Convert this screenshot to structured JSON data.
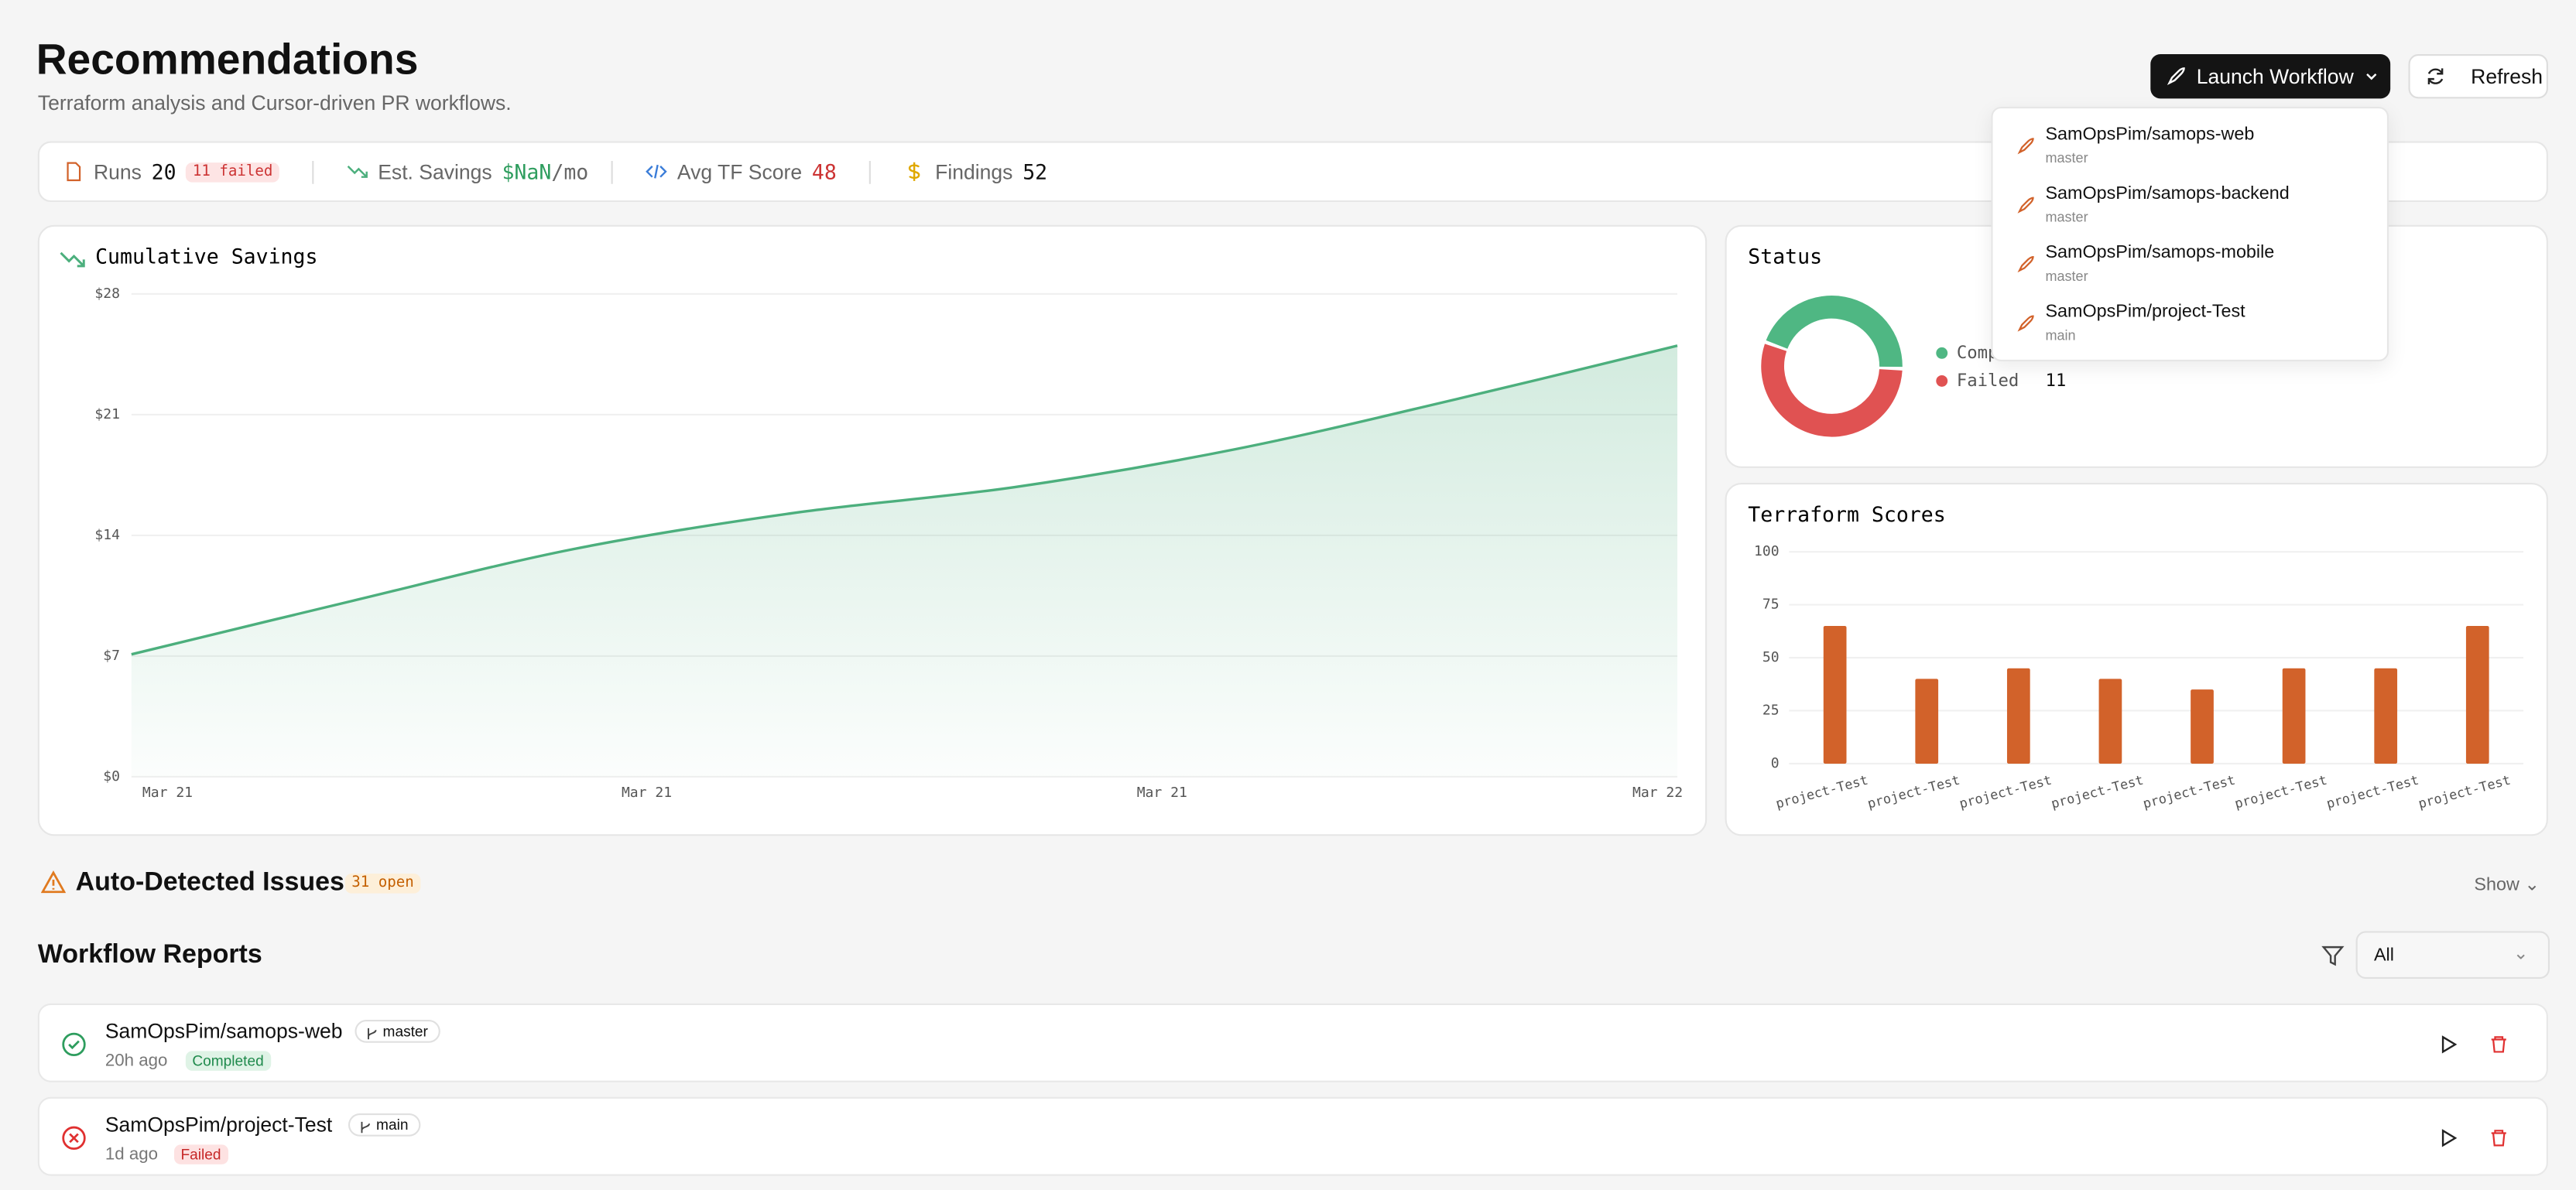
{
  "header": {
    "title": "Recommendations",
    "subtitle": "Terraform analysis and Cursor-driven PR workflows.",
    "launch": "Launch Workflow",
    "refresh": "Refresh"
  },
  "launch_menu": [
    {
      "repo": "SamOpsPim/samops-web",
      "branch": "master"
    },
    {
      "repo": "SamOpsPim/samops-backend",
      "branch": "master"
    },
    {
      "repo": "SamOpsPim/samops-mobile",
      "branch": "master"
    },
    {
      "repo": "SamOpsPim/project-Test",
      "branch": "main"
    }
  ],
  "stats": {
    "runs": {
      "label": "Runs",
      "value": "20",
      "badge": "11 failed"
    },
    "savings": {
      "label": "Est. Savings",
      "value": "$NaN",
      "unit": "/mo"
    },
    "score": {
      "label": "Avg TF Score",
      "value": "48"
    },
    "findings": {
      "label": "Findings",
      "value": "52"
    }
  },
  "chart_data": [
    {
      "type": "line",
      "title": "Cumulative Savings",
      "color": "#4caf7d",
      "values": [
        7.1,
        10.2,
        13.2,
        15.3,
        16.8,
        19.0,
        21.9,
        25.0
      ],
      "xtick_labels": [
        "Mar 21",
        "Mar 21",
        "Mar 21",
        "Mar 22"
      ],
      "ylim": [
        0,
        28
      ],
      "yticks": [
        {
          "value": 0,
          "label": "$0"
        },
        {
          "value": 7,
          "label": "$7"
        },
        {
          "value": 14,
          "label": "$14"
        },
        {
          "value": 21,
          "label": "$21"
        },
        {
          "value": 28,
          "label": "$28"
        }
      ],
      "grid": true
    },
    {
      "type": "pie",
      "title": "Status",
      "categories": [
        "Completed",
        "Failed"
      ],
      "values": [
        9,
        11
      ],
      "colors": [
        "#4fb783",
        "#e05252"
      ]
    },
    {
      "type": "bar",
      "title": "Terraform Scores",
      "color": "#d2622a",
      "categories": [
        "project-Test",
        "project-Test",
        "project-Test",
        "project-Test",
        "project-Test",
        "project-Test",
        "project-Test",
        "project-Test"
      ],
      "values": [
        65,
        40,
        45,
        40,
        35,
        45,
        45,
        65
      ],
      "ylim": [
        0,
        100
      ],
      "yticks": [
        0,
        25,
        50,
        75,
        100
      ],
      "grid": true
    }
  ],
  "issues": {
    "title": "Auto-Detected Issues",
    "badge": "31 open",
    "toggle": "Show"
  },
  "reports": {
    "title": "Workflow Reports",
    "filter": "All",
    "rows": [
      {
        "repo": "SamOpsPim/samops-web",
        "branch": "master",
        "time": "20h ago",
        "status": "Completed"
      },
      {
        "repo": "SamOpsPim/project-Test",
        "branch": "main",
        "time": "1d ago",
        "status": "Failed"
      }
    ]
  }
}
